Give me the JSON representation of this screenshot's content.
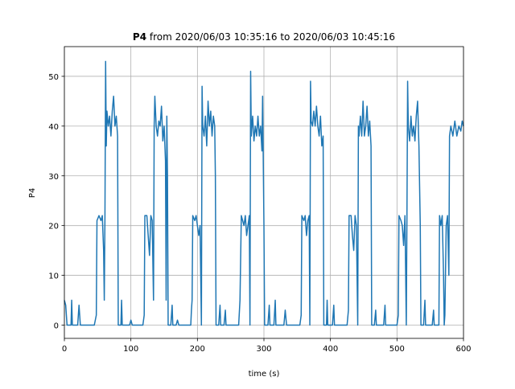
{
  "chart_data": {
    "type": "line",
    "title_bold": "P4",
    "title_rest": "from 2020/06/03 10:35:16 to 2020/06/03 10:45:16",
    "xlabel": "time (s)",
    "ylabel": "P4",
    "color": "#1f77b4",
    "xlim": [
      0,
      600
    ],
    "ylim": [
      -2.67,
      55.97
    ],
    "xticks": [
      0,
      100,
      200,
      300,
      400,
      500,
      600
    ],
    "yticks": [
      0,
      10,
      20,
      30,
      40,
      50
    ],
    "grid": true,
    "x": [
      0,
      2,
      4,
      10,
      11,
      12,
      20,
      22,
      24,
      45,
      48,
      49,
      52,
      55,
      57,
      59,
      60,
      61,
      62,
      63,
      64,
      66,
      68,
      70,
      72,
      74,
      76,
      78,
      80,
      81,
      85,
      86,
      87,
      98,
      100,
      102,
      118,
      120,
      121,
      124,
      126,
      128,
      130,
      132,
      134,
      135,
      136,
      138,
      140,
      142,
      144,
      146,
      148,
      150,
      152,
      153,
      154,
      155,
      156,
      160,
      162,
      163,
      168,
      170,
      172,
      190,
      191,
      192,
      193,
      196,
      198,
      200,
      202,
      204,
      206,
      207,
      208,
      210,
      212,
      214,
      216,
      218,
      220,
      222,
      224,
      226,
      227,
      228,
      232,
      234,
      235,
      240,
      242,
      243,
      262,
      264,
      266,
      270,
      272,
      274,
      276,
      278,
      279,
      280,
      281,
      283,
      285,
      287,
      289,
      291,
      293,
      295,
      297,
      298,
      300,
      301,
      306,
      308,
      309,
      315,
      317,
      318,
      330,
      332,
      334,
      350,
      354,
      356,
      357,
      360,
      362,
      364,
      366,
      368,
      369,
      370,
      371,
      373,
      375,
      377,
      379,
      381,
      383,
      385,
      387,
      389,
      390,
      394,
      395,
      396,
      403,
      405,
      406,
      420,
      425,
      427,
      428,
      431,
      433,
      435,
      437,
      439,
      441,
      442,
      443,
      445,
      447,
      449,
      451,
      453,
      455,
      457,
      459,
      461,
      462,
      466,
      468,
      469,
      480,
      482,
      483,
      500,
      502,
      503,
      506,
      508,
      510,
      512,
      514,
      515,
      516,
      517,
      519,
      521,
      523,
      525,
      527,
      529,
      531,
      533,
      535,
      536,
      540,
      542,
      543,
      553,
      555,
      556,
      563,
      564,
      566,
      568,
      570,
      571,
      572,
      574,
      576,
      578,
      579,
      581,
      584,
      587,
      590,
      593,
      596,
      598,
      600
    ],
    "values": [
      5,
      4,
      0,
      0,
      5,
      0,
      0,
      4,
      0,
      0,
      2,
      21,
      22,
      21,
      22,
      15,
      5,
      22,
      53,
      36,
      43,
      40,
      42,
      38,
      43,
      46,
      40,
      42,
      38,
      0,
      0,
      5,
      0,
      0,
      1,
      0,
      0,
      2,
      22,
      22,
      18,
      14,
      22,
      21,
      5,
      40,
      46,
      40,
      38,
      41,
      40,
      44,
      37,
      40,
      33,
      5,
      42,
      30,
      0,
      0,
      4,
      0,
      0,
      1,
      0,
      0,
      3,
      5,
      22,
      21,
      22,
      20,
      18,
      20,
      0,
      48,
      40,
      38,
      42,
      36,
      45,
      40,
      43,
      38,
      42,
      40,
      30,
      0,
      0,
      4,
      0,
      0,
      3,
      0,
      0,
      5,
      22,
      20,
      22,
      18,
      20,
      22,
      0,
      51,
      38,
      42,
      37,
      40,
      38,
      42,
      38,
      40,
      35,
      46,
      20,
      0,
      0,
      4,
      0,
      0,
      5,
      0,
      0,
      3,
      0,
      0,
      0,
      2,
      22,
      21,
      22,
      18,
      21,
      22,
      0,
      49,
      41,
      40,
      43,
      40,
      44,
      40,
      38,
      42,
      36,
      38,
      0,
      0,
      5,
      0,
      0,
      4,
      0,
      0,
      0,
      3,
      22,
      22,
      18,
      15,
      22,
      20,
      0,
      40,
      38,
      42,
      38,
      45,
      38,
      40,
      44,
      38,
      41,
      36,
      0,
      0,
      3,
      0,
      0,
      4,
      0,
      0,
      2,
      22,
      21,
      20,
      16,
      22,
      0,
      22,
      49,
      40,
      37,
      42,
      38,
      40,
      37,
      42,
      45,
      36,
      20,
      0,
      0,
      5,
      0,
      0,
      3,
      0,
      0,
      22,
      20,
      22,
      10,
      0,
      2,
      20,
      22,
      10,
      38,
      40,
      38,
      41,
      38,
      40,
      39,
      41,
      40
    ]
  }
}
